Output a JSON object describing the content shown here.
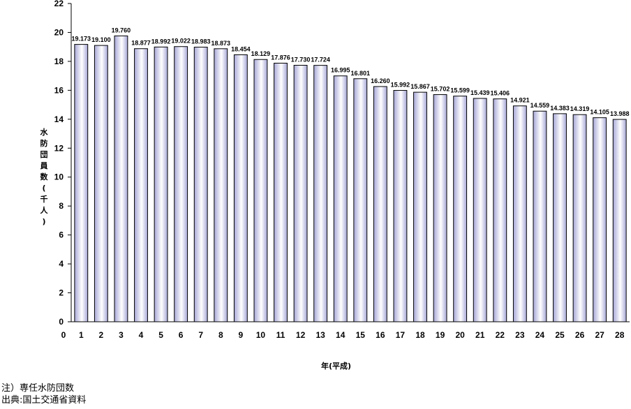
{
  "chart_data": {
    "type": "bar",
    "title": "",
    "xlabel": "年(平成)",
    "ylabel": "水防団員数(千人)",
    "ylim": [
      0,
      22
    ],
    "yticks": [
      0,
      2,
      4,
      6,
      8,
      10,
      12,
      14,
      16,
      18,
      20,
      22
    ],
    "x_origin_label": "0",
    "grid": false,
    "categories": [
      "1",
      "2",
      "3",
      "4",
      "5",
      "6",
      "7",
      "8",
      "9",
      "10",
      "11",
      "12",
      "13",
      "14",
      "15",
      "16",
      "17",
      "18",
      "19",
      "20",
      "21",
      "22",
      "23",
      "24",
      "25",
      "26",
      "27",
      "28"
    ],
    "values": [
      19.173,
      19.1,
      19.76,
      18.877,
      18.992,
      19.022,
      18.983,
      18.873,
      18.454,
      18.129,
      17.876,
      17.73,
      17.724,
      16.995,
      16.801,
      16.26,
      15.992,
      15.867,
      15.702,
      15.599,
      15.439,
      15.406,
      14.921,
      14.559,
      14.383,
      14.319,
      14.105,
      13.988
    ],
    "data_labels": [
      "19.173",
      "19.100",
      "19.760",
      "18.877",
      "18.992",
      "19.022",
      "18.983",
      "18.873",
      "18.454",
      "18.129",
      "17.876",
      "17.730",
      "17.724",
      "16.995",
      "16.801",
      "16.260",
      "15.992",
      "15.867",
      "15.702",
      "15.599",
      "15.439",
      "15.406",
      "14.921",
      "14.559",
      "14.383",
      "14.319",
      "14.105",
      "13.988"
    ],
    "colors": {
      "bar_fill_light": "#ffffff",
      "bar_fill_dark": "#a8a8d8",
      "bar_stroke": "#000000",
      "axis": "#000000"
    }
  },
  "axis_titles": {
    "y": "水防団員数(千人)",
    "x": "年(平成)"
  },
  "notes": {
    "line1": "注）専任水防団数",
    "line2": "出典:国土交通省資料"
  }
}
